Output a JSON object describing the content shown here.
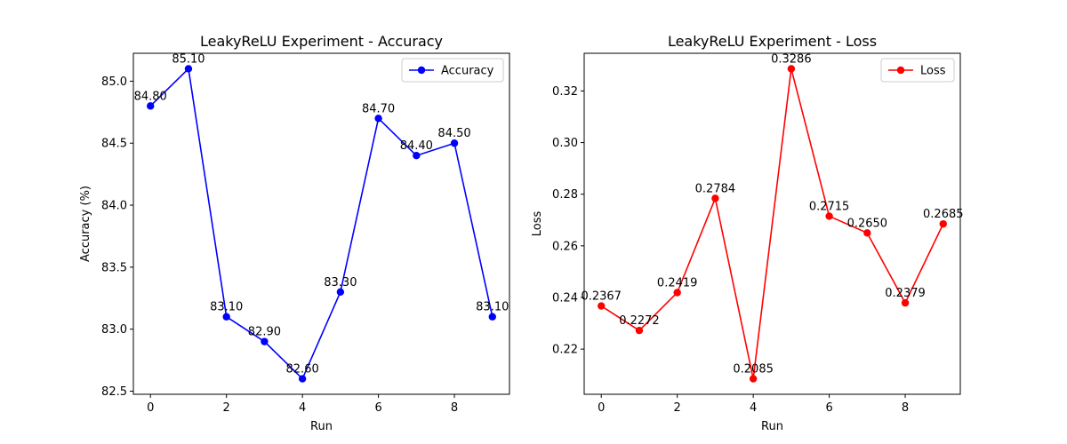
{
  "chart_data": [
    {
      "type": "line",
      "title": "LeakyReLU Experiment - Accuracy",
      "xlabel": "Run",
      "ylabel": "Accuracy (%)",
      "x": [
        0,
        1,
        2,
        3,
        4,
        5,
        6,
        7,
        8,
        9
      ],
      "xticks": [
        0,
        2,
        4,
        6,
        8
      ],
      "xlim": [
        -0.45,
        9.45
      ],
      "ylim": [
        82.475,
        85.225
      ],
      "yticks": [
        82.5,
        83.0,
        83.5,
        84.0,
        84.5,
        85.0
      ],
      "ytick_labels": [
        "82.5",
        "83.0",
        "83.5",
        "84.0",
        "84.5",
        "85.0"
      ],
      "series": [
        {
          "name": "Accuracy",
          "color": "#0000ff",
          "marker": "circle",
          "values": [
            84.8,
            85.1,
            83.1,
            82.9,
            82.6,
            83.3,
            84.7,
            84.4,
            84.5,
            83.1
          ],
          "data_labels": [
            "84.80",
            "85.10",
            "83.10",
            "82.90",
            "82.60",
            "83.30",
            "84.70",
            "84.40",
            "84.50",
            "83.10"
          ]
        }
      ],
      "legend": "top-right",
      "grid": false
    },
    {
      "type": "line",
      "title": "LeakyReLU Experiment - Loss",
      "xlabel": "Run",
      "ylabel": "Loss",
      "x": [
        0,
        1,
        2,
        3,
        4,
        5,
        6,
        7,
        8,
        9
      ],
      "xticks": [
        0,
        2,
        4,
        6,
        8
      ],
      "xlim": [
        -0.45,
        9.45
      ],
      "ylim": [
        0.2025,
        0.3346
      ],
      "yticks": [
        0.22,
        0.24,
        0.26,
        0.28,
        0.3,
        0.32
      ],
      "ytick_labels": [
        "0.22",
        "0.24",
        "0.26",
        "0.28",
        "0.30",
        "0.32"
      ],
      "series": [
        {
          "name": "Loss",
          "color": "#ff0000",
          "marker": "circle",
          "values": [
            0.2367,
            0.2272,
            0.2419,
            0.2784,
            0.2085,
            0.3286,
            0.2715,
            0.265,
            0.2379,
            0.2685
          ],
          "data_labels": [
            "0.2367",
            "0.2272",
            "0.2419",
            "0.2784",
            "0.2085",
            "0.3286",
            "0.2715",
            "0.2650",
            "0.2379",
            "0.2685"
          ]
        }
      ],
      "legend": "top-right",
      "grid": false
    }
  ]
}
